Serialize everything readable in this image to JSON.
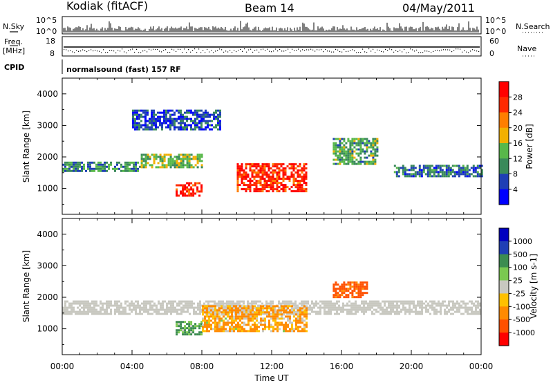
{
  "header": {
    "station": "Kodiak (fitACF)",
    "beam": "Beam 14",
    "date": "04/May/2011"
  },
  "status_panels": {
    "nsky_label": "N.Sky",
    "nsearch_label": "N.Search",
    "noise_ticks_left": [
      "10^5",
      "10^0"
    ],
    "noise_ticks_right": [
      "10^5",
      "10^0"
    ],
    "freq_label_1": "Freq.",
    "freq_label_2": "[MHz]",
    "freq_ticks": [
      "18",
      "8"
    ],
    "nave_label": "Nave",
    "nave_ticks": [
      "60",
      "0"
    ],
    "cpid_label": "CPID",
    "cpid_text": "normalsound (fast) 157 RF"
  },
  "colors": {
    "power": [
      "#0000ff",
      "#1f3fb5",
      "#3a8a5a",
      "#58b84a",
      "#f2b000",
      "#ff7e00",
      "#ff2a00",
      "#ff0000"
    ],
    "velocity": [
      "#ff0000",
      "#ff5000",
      "#ff8a00",
      "#ffc000",
      "#c8c8c0",
      "#7ac850",
      "#3c8c50",
      "#1f3fb5",
      "#0000c0"
    ]
  },
  "chart_data": [
    {
      "type": "heatmap",
      "panel": "power",
      "xlabel": "",
      "ylabel": "Slant Range [km]",
      "ylim": [
        180,
        4500
      ],
      "yticks": [
        "1000",
        "2000",
        "3000",
        "4000"
      ],
      "xticks": [],
      "colorbar_label": "Power [dB]",
      "colorbar_ticks": [
        "4",
        "8",
        "12",
        "16",
        "20",
        "24",
        "28"
      ],
      "bands": [
        {
          "x": [
            0,
            4.5
          ],
          "y": [
            1550,
            1850
          ],
          "value": 10
        },
        {
          "x": [
            4.5,
            8
          ],
          "y": [
            1700,
            2100
          ],
          "value": 14
        },
        {
          "x": [
            6.5,
            8
          ],
          "y": [
            800,
            1200
          ],
          "value": 28
        },
        {
          "x": [
            10,
            14
          ],
          "y": [
            900,
            1800
          ],
          "value": 27
        },
        {
          "x": [
            15.5,
            18
          ],
          "y": [
            1800,
            2600
          ],
          "value": 12
        },
        {
          "x": [
            19,
            24
          ],
          "y": [
            1400,
            1750
          ],
          "value": 8
        },
        {
          "x": [
            4,
            9
          ],
          "y": [
            2900,
            3500
          ],
          "value": 6
        }
      ]
    },
    {
      "type": "heatmap",
      "panel": "velocity",
      "xlabel": "Time UT",
      "ylabel": "Slant Range [km]",
      "ylim": [
        180,
        4500
      ],
      "yticks": [
        "1000",
        "2000",
        "3000",
        "4000"
      ],
      "xticks": [
        "00:00",
        "04:00",
        "08:00",
        "12:00",
        "16:00",
        "20:00",
        "00:00"
      ],
      "colorbar_label": "Velocity [m s-1]",
      "colorbar_ticks": [
        "1000",
        "500",
        "100",
        "25",
        "-25",
        "-100",
        "-500",
        "-1000"
      ],
      "bands": [
        {
          "x": [
            0,
            24
          ],
          "y": [
            1450,
            1900
          ],
          "value": 0
        },
        {
          "x": [
            6.5,
            8
          ],
          "y": [
            800,
            1250
          ],
          "value": 150
        },
        {
          "x": [
            8,
            14
          ],
          "y": [
            900,
            1750
          ],
          "value": -120
        },
        {
          "x": [
            15.5,
            17.5
          ],
          "y": [
            2000,
            2500
          ],
          "value": -600
        }
      ]
    }
  ]
}
